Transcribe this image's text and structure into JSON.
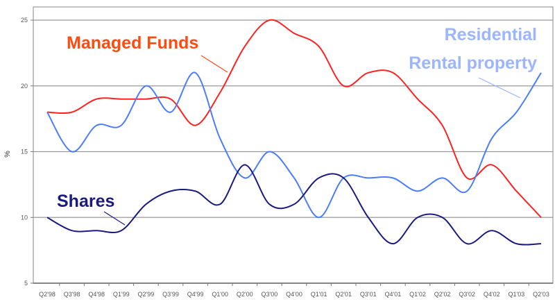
{
  "chart_data": {
    "type": "line",
    "title": "",
    "xlabel": "",
    "ylabel": "%",
    "ylim": [
      5,
      26
    ],
    "yticks": [
      5,
      10,
      15,
      20,
      25
    ],
    "grid": true,
    "categories": [
      "Q2'98",
      "Q3'98",
      "Q4'98",
      "Q1'99",
      "Q2'99",
      "Q3'99",
      "Q4'99",
      "Q1'00",
      "Q2'00",
      "Q3'00",
      "Q4'00",
      "Q1'01",
      "Q2'01",
      "Q3'01",
      "Q4'01",
      "Q1'02",
      "Q2'02",
      "Q3'02",
      "Q4'02",
      "Q1'03",
      "Q2'03"
    ],
    "series": [
      {
        "name": "Managed Funds",
        "color": "#ff2020",
        "label_color": "#ff4a10",
        "values": [
          18,
          18,
          19,
          19,
          19,
          19,
          17,
          19.5,
          23,
          25,
          24,
          23,
          20,
          21,
          21,
          19,
          17,
          13,
          14,
          12,
          10
        ]
      },
      {
        "name": "Residential Rental property",
        "label_lines": [
          "Residential",
          "Rental property"
        ],
        "color": "#4a7cff",
        "label_color": "#9bb5ff",
        "values": [
          18,
          15,
          17,
          17,
          20,
          18,
          21,
          16,
          13,
          15,
          13,
          10,
          13,
          13,
          13,
          12,
          13,
          12,
          16,
          18,
          21
        ]
      },
      {
        "name": "Shares",
        "color": "#1a1a80",
        "label_color": "#1a1a80",
        "values": [
          10,
          9,
          9,
          9,
          11,
          12,
          12,
          11,
          14,
          11,
          11,
          13,
          13,
          10,
          8,
          10,
          10,
          8,
          9,
          8,
          8
        ]
      }
    ]
  }
}
